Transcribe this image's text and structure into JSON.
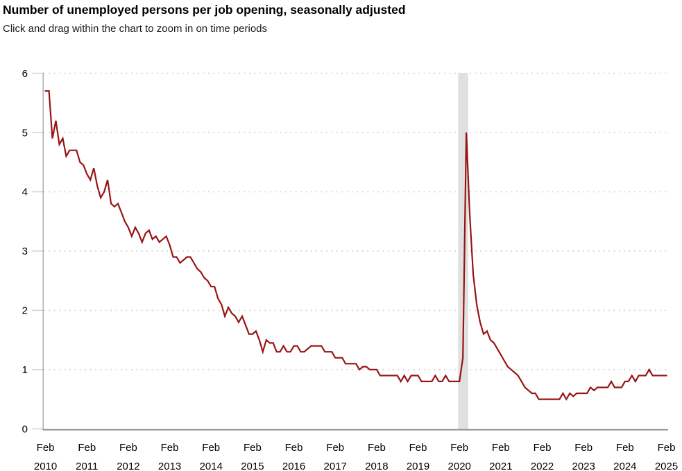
{
  "header": {
    "title": "Number of unemployed persons per job opening, seasonally adjusted",
    "subtitle": "Click and drag within the chart to zoom in on time periods"
  },
  "colors": {
    "line": "#971414",
    "axis_x": "#888888",
    "axis_y": "#aaaaaa",
    "tick": "#c6d2d9",
    "grid": "#c8c8c8",
    "recession_band": "#e0e0e0",
    "text": "#000000",
    "background": "#ffffff"
  },
  "chart_data": {
    "type": "line",
    "title": "Number of unemployed persons per job opening, seasonally adjusted",
    "subtitle": "Click and drag within the chart to zoom in on time periods",
    "ylabel": "",
    "xlabel": "",
    "ylim": [
      0,
      6
    ],
    "yticks": [
      0,
      1,
      2,
      3,
      4,
      5,
      6
    ],
    "grid": {
      "horizontal": "dotted",
      "vertical": "none"
    },
    "legend": "none",
    "recession_band": {
      "from": "2020-02",
      "to": "2020-04",
      "color": "#e0e0e0"
    },
    "xticks": [
      {
        "month": "Feb",
        "year": "2010"
      },
      {
        "month": "Feb",
        "year": "2011"
      },
      {
        "month": "Feb",
        "year": "2012"
      },
      {
        "month": "Feb",
        "year": "2013"
      },
      {
        "month": "Feb",
        "year": "2014"
      },
      {
        "month": "Feb",
        "year": "2015"
      },
      {
        "month": "Feb",
        "year": "2016"
      },
      {
        "month": "Feb",
        "year": "2017"
      },
      {
        "month": "Feb",
        "year": "2018"
      },
      {
        "month": "Feb",
        "year": "2019"
      },
      {
        "month": "Feb",
        "year": "2020"
      },
      {
        "month": "Feb",
        "year": "2021"
      },
      {
        "month": "Feb",
        "year": "2022"
      },
      {
        "month": "Feb",
        "year": "2023"
      },
      {
        "month": "Feb",
        "year": "2024"
      },
      {
        "month": "Feb",
        "year": "2025"
      }
    ],
    "series": [
      {
        "name": "Unemployed persons per job opening",
        "color": "#971414",
        "frequency": "monthly",
        "start": "2010-02",
        "end": "2025-02",
        "values": [
          5.7,
          5.7,
          4.9,
          5.2,
          4.8,
          4.9,
          4.6,
          4.7,
          4.7,
          4.7,
          4.5,
          4.45,
          4.3,
          4.2,
          4.4,
          4.1,
          3.9,
          4.0,
          4.2,
          3.8,
          3.75,
          3.8,
          3.65,
          3.5,
          3.4,
          3.25,
          3.4,
          3.3,
          3.15,
          3.3,
          3.35,
          3.2,
          3.25,
          3.15,
          3.2,
          3.25,
          3.1,
          2.9,
          2.9,
          2.8,
          2.85,
          2.9,
          2.9,
          2.8,
          2.7,
          2.65,
          2.55,
          2.5,
          2.4,
          2.4,
          2.2,
          2.1,
          1.9,
          2.05,
          1.95,
          1.9,
          1.8,
          1.9,
          1.75,
          1.6,
          1.6,
          1.65,
          1.5,
          1.3,
          1.5,
          1.45,
          1.45,
          1.3,
          1.3,
          1.4,
          1.3,
          1.3,
          1.4,
          1.4,
          1.3,
          1.3,
          1.35,
          1.4,
          1.4,
          1.4,
          1.4,
          1.3,
          1.3,
          1.3,
          1.2,
          1.2,
          1.2,
          1.1,
          1.1,
          1.1,
          1.1,
          1.0,
          1.05,
          1.05,
          1.0,
          1.0,
          1.0,
          0.9,
          0.9,
          0.9,
          0.9,
          0.9,
          0.9,
          0.8,
          0.9,
          0.8,
          0.9,
          0.9,
          0.9,
          0.8,
          0.8,
          0.8,
          0.8,
          0.9,
          0.8,
          0.8,
          0.9,
          0.8,
          0.8,
          0.8,
          0.8,
          1.2,
          5.0,
          3.6,
          2.6,
          2.1,
          1.8,
          1.6,
          1.65,
          1.5,
          1.45,
          1.35,
          1.25,
          1.15,
          1.05,
          1.0,
          0.95,
          0.9,
          0.8,
          0.7,
          0.65,
          0.6,
          0.6,
          0.5,
          0.5,
          0.5,
          0.5,
          0.5,
          0.5,
          0.5,
          0.6,
          0.5,
          0.6,
          0.55,
          0.6,
          0.6,
          0.6,
          0.6,
          0.7,
          0.65,
          0.7,
          0.7,
          0.7,
          0.7,
          0.8,
          0.7,
          0.7,
          0.7,
          0.8,
          0.8,
          0.9,
          0.8,
          0.9,
          0.9,
          0.9,
          1.0,
          0.9,
          0.9,
          0.9,
          0.9,
          0.9
        ]
      }
    ]
  }
}
